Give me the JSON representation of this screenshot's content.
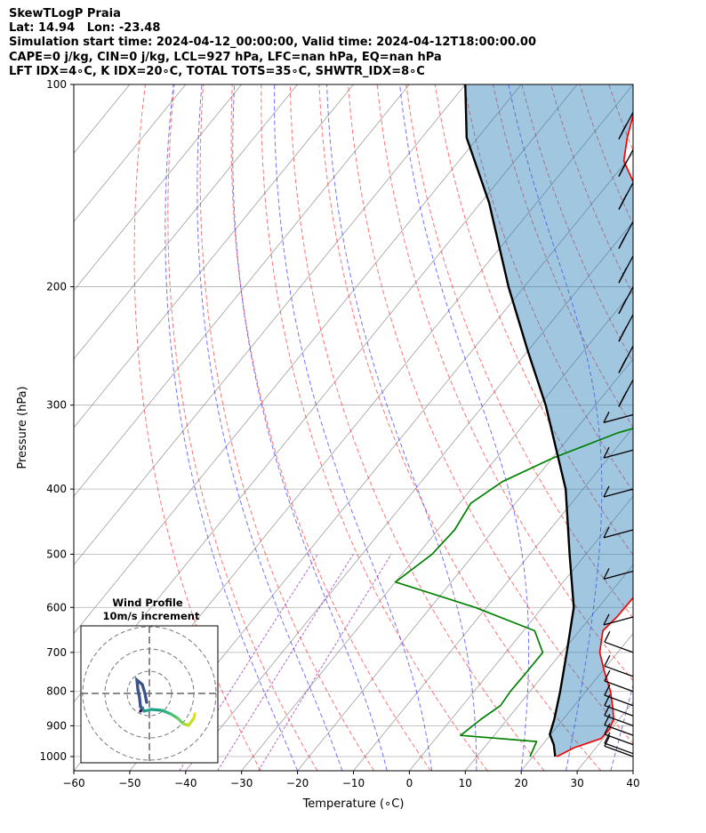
{
  "header": {
    "line1": "SkewTLogP Praia",
    "line2": "Lat: 14.94   Lon: -23.48",
    "line3": "Simulation start time: 2024-04-12_00:00:00, Valid time: 2024-04-12T18:00:00.00",
    "line4": "CAPE=0 j/kg, CIN=0 j/kg, LCL=927 hPa, LFC=nan hPa, EQ=nan hPa",
    "line5": "LFT IDX=4∘C, K IDX=20∘C, TOTAL TOTS=35∘C, SHWTR_IDX=8∘C"
  },
  "chart_data": {
    "type": "line",
    "subtype": "skew-t log-p",
    "xlabel": "Temperature (∘C)",
    "ylabel": "Pressure (hPa)",
    "xlim": [
      -60,
      40
    ],
    "ylim": [
      1050,
      100
    ],
    "yscale": "log",
    "xticks": [
      -60,
      -50,
      -40,
      -30,
      -20,
      -10,
      0,
      10,
      20,
      30,
      40
    ],
    "yticks": [
      100,
      200,
      300,
      400,
      500,
      600,
      700,
      800,
      900,
      1000
    ],
    "grid": true,
    "colors": {
      "temperature": "#ff0000",
      "dewpoint": "#008000",
      "parcel": "#000000",
      "cin_fill": "#1f77b4",
      "dry_adiabats": "#ff0000",
      "moist_adiabats": "#0000ff",
      "mixing_ratio": "#8000a0",
      "isotherms": "#808080"
    },
    "series": [
      {
        "key": "temperature",
        "points": [
          [
            1000,
            24.3
          ],
          [
            970,
            26.1
          ],
          [
            940,
            29.6
          ],
          [
            910,
            29.7
          ],
          [
            880,
            29.0
          ],
          [
            850,
            27.4
          ],
          [
            800,
            24.4
          ],
          [
            750,
            20.6
          ],
          [
            700,
            16.8
          ],
          [
            650,
            14.2
          ],
          [
            620,
            14.7
          ],
          [
            580,
            14.8
          ],
          [
            540,
            12.8
          ],
          [
            500,
            10.3
          ],
          [
            450,
            7.5
          ],
          [
            400,
            3.5
          ],
          [
            370,
            1.0
          ],
          [
            330,
            -2.7
          ],
          [
            290,
            -8.3
          ],
          [
            250,
            -14.6
          ],
          [
            220,
            -20.4
          ],
          [
            200,
            -25.4
          ],
          [
            180,
            -30.7
          ],
          [
            160,
            -37.8
          ],
          [
            140,
            -45.6
          ],
          [
            130,
            -50.5
          ],
          [
            120,
            -53.3
          ],
          [
            110,
            -55.8
          ],
          [
            100,
            -59.1
          ]
        ]
      },
      {
        "key": "dewpoint",
        "points": [
          [
            1000,
            19.5
          ],
          [
            950,
            18.5
          ],
          [
            930,
            4.0
          ],
          [
            880,
            5.3
          ],
          [
            840,
            6.8
          ],
          [
            800,
            6.5
          ],
          [
            750,
            6.6
          ],
          [
            700,
            6.6
          ],
          [
            650,
            2.0
          ],
          [
            600,
            -12.0
          ],
          [
            550,
            -30.0
          ],
          [
            500,
            -27.5
          ],
          [
            460,
            -27.0
          ],
          [
            420,
            -28.0
          ],
          [
            390,
            -25.5
          ],
          [
            360,
            -20.0
          ],
          [
            330,
            -12.0
          ],
          [
            310,
            -3.5
          ],
          [
            290,
            0.0
          ],
          [
            260,
            -3.0
          ],
          [
            240,
            -5.0
          ],
          [
            220,
            -7.0
          ],
          [
            200,
            -10.0
          ],
          [
            180,
            -15.0
          ],
          [
            165,
            -21.0
          ],
          [
            150,
            -21.0
          ],
          [
            140,
            -22.0
          ],
          [
            120,
            -29.0
          ],
          [
            110,
            -30.0
          ],
          [
            100,
            -32.5
          ]
        ]
      },
      {
        "key": "parcel",
        "points": [
          [
            1000,
            24.0
          ],
          [
            960,
            22.0
          ],
          [
            927,
            19.8
          ],
          [
            880,
            18.4
          ],
          [
            800,
            15.4
          ],
          [
            700,
            10.9
          ],
          [
            600,
            5.6
          ],
          [
            500,
            -2.9
          ],
          [
            400,
            -13.1
          ],
          [
            300,
            -28.9
          ],
          [
            250,
            -39.8
          ],
          [
            200,
            -52.8
          ],
          [
            150,
            -68.5
          ],
          [
            120,
            -82.0
          ],
          [
            100,
            -90.0
          ]
        ]
      }
    ],
    "wind_barbs": {
      "pressures": [
        110,
        125,
        140,
        160,
        180,
        200,
        220,
        245,
        275,
        310,
        350,
        400,
        460,
        530,
        620,
        700,
        760,
        800,
        840,
        870,
        900,
        930,
        960,
        990,
        1000
      ]
    },
    "hodograph": {
      "title": "Wind Profile",
      "subtitle": "10m/s increment"
    }
  }
}
